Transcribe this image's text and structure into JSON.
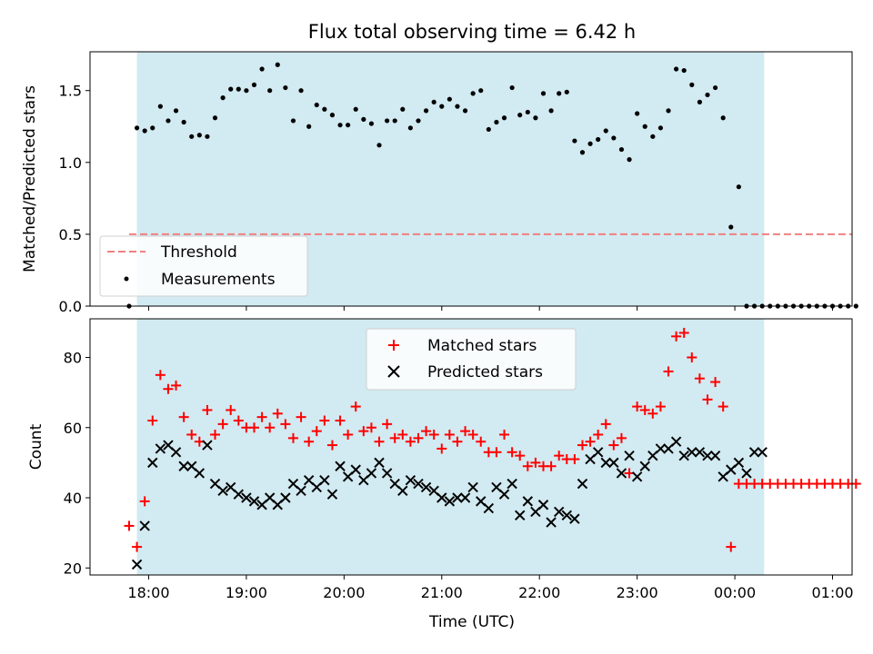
{
  "chart_data": [
    {
      "type": "scatter",
      "title": "Flux total observing time = 6.42 h",
      "xlabel": "",
      "ylabel": "Matched/Predicted stars",
      "ylim": [
        0,
        1.77
      ],
      "xlim": [
        -0.6,
        7.2
      ],
      "yticks": [
        0.0,
        0.5,
        1.0,
        1.5
      ],
      "ytick_labels": [
        "0.0",
        "0.5",
        "1.0",
        "1.5"
      ],
      "shaded_span_hours": [
        -0.12,
        6.3
      ],
      "threshold": {
        "label": "Threshold",
        "value": 0.5,
        "x_range": [
          -0.2,
          7.2
        ],
        "color": "#f08080"
      },
      "series": [
        {
          "name": "Measurements",
          "color": "#000000",
          "x": [
            -0.2,
            -0.12,
            -0.04,
            0.04,
            0.12,
            0.2,
            0.28,
            0.36,
            0.44,
            0.52,
            0.6,
            0.68,
            0.76,
            0.84,
            0.92,
            1.0,
            1.08,
            1.16,
            1.24,
            1.32,
            1.4,
            1.48,
            1.56,
            1.64,
            1.72,
            1.8,
            1.88,
            1.96,
            2.04,
            2.12,
            2.2,
            2.28,
            2.36,
            2.44,
            2.52,
            2.6,
            2.68,
            2.76,
            2.84,
            2.92,
            3.0,
            3.08,
            3.16,
            3.24,
            3.32,
            3.4,
            3.48,
            3.56,
            3.64,
            3.72,
            3.8,
            3.88,
            3.96,
            4.04,
            4.12,
            4.2,
            4.28,
            4.36,
            4.44,
            4.52,
            4.6,
            4.68,
            4.76,
            4.84,
            4.92,
            5.0,
            5.08,
            5.16,
            5.24,
            5.32,
            5.4,
            5.48,
            5.56,
            5.64,
            5.72,
            5.8,
            5.88,
            5.96,
            6.04,
            6.12,
            6.2,
            6.28,
            6.36,
            6.44,
            6.52,
            6.6,
            6.68,
            6.76,
            6.84,
            6.92,
            7.0,
            7.08,
            7.16,
            7.24
          ],
          "y": [
            0.0,
            1.24,
            1.22,
            1.24,
            1.39,
            1.29,
            1.36,
            1.28,
            1.18,
            1.19,
            1.18,
            1.31,
            1.45,
            1.51,
            1.51,
            1.5,
            1.54,
            1.65,
            1.5,
            1.68,
            1.52,
            1.29,
            1.5,
            1.25,
            1.4,
            1.37,
            1.33,
            1.26,
            1.26,
            1.37,
            1.3,
            1.27,
            1.12,
            1.29,
            1.29,
            1.37,
            1.24,
            1.29,
            1.36,
            1.42,
            1.39,
            1.44,
            1.39,
            1.36,
            1.48,
            1.5,
            1.23,
            1.28,
            1.31,
            1.52,
            1.33,
            1.35,
            1.31,
            1.48,
            1.36,
            1.48,
            1.49,
            1.15,
            1.07,
            1.13,
            1.16,
            1.22,
            1.17,
            1.09,
            1.02,
            1.34,
            1.25,
            1.18,
            1.24,
            1.36,
            1.65,
            1.64,
            1.54,
            1.42,
            1.47,
            1.52,
            1.31,
            0.55,
            0.83,
            0.0,
            0.0,
            0.0,
            0.0,
            0.0,
            0.0,
            0.0,
            0.0,
            0.0,
            0.0,
            0.0,
            0.0,
            0.0,
            0.0,
            0.0
          ]
        }
      ],
      "legend": {
        "placement": "lower-left",
        "entries": [
          "Threshold",
          "Measurements"
        ]
      }
    },
    {
      "type": "scatter",
      "title": "",
      "xlabel": "Time (UTC)",
      "ylabel": "Count",
      "ylim": [
        18,
        91
      ],
      "xlim": [
        -0.6,
        7.2
      ],
      "yticks": [
        20,
        40,
        60,
        80
      ],
      "ytick_labels": [
        "20",
        "40",
        "60",
        "80"
      ],
      "xticks_hours": [
        0,
        1,
        2,
        3,
        4,
        5,
        6,
        7
      ],
      "xtick_labels": [
        "18:00",
        "19:00",
        "20:00",
        "21:00",
        "22:00",
        "23:00",
        "00:00",
        "01:00"
      ],
      "shaded_span_hours": [
        -0.12,
        6.3
      ],
      "series": [
        {
          "name": "Matched stars",
          "marker": "plus",
          "color": "#ff0000",
          "x": [
            -0.2,
            -0.12,
            -0.04,
            0.04,
            0.12,
            0.2,
            0.28,
            0.36,
            0.44,
            0.52,
            0.6,
            0.68,
            0.76,
            0.84,
            0.92,
            1.0,
            1.08,
            1.16,
            1.24,
            1.32,
            1.4,
            1.48,
            1.56,
            1.64,
            1.72,
            1.8,
            1.88,
            1.96,
            2.04,
            2.12,
            2.2,
            2.28,
            2.36,
            2.44,
            2.52,
            2.6,
            2.68,
            2.76,
            2.84,
            2.92,
            3.0,
            3.08,
            3.16,
            3.24,
            3.32,
            3.4,
            3.48,
            3.56,
            3.64,
            3.72,
            3.8,
            3.88,
            3.96,
            4.04,
            4.12,
            4.2,
            4.28,
            4.36,
            4.44,
            4.52,
            4.6,
            4.68,
            4.76,
            4.84,
            4.92,
            5.0,
            5.08,
            5.16,
            5.24,
            5.32,
            5.4,
            5.48,
            5.56,
            5.64,
            5.72,
            5.8,
            5.88,
            5.96,
            6.04,
            6.12,
            6.2,
            6.28,
            6.36,
            6.44,
            6.52,
            6.6,
            6.68,
            6.76,
            6.84,
            6.92,
            7.0,
            7.08,
            7.16,
            7.24
          ],
          "y": [
            32,
            26,
            39,
            62,
            75,
            71,
            72,
            63,
            58,
            56,
            65,
            58,
            61,
            65,
            62,
            60,
            60,
            63,
            60,
            64,
            61,
            57,
            63,
            56,
            59,
            62,
            55,
            62,
            58,
            66,
            59,
            60,
            56,
            61,
            57,
            58,
            56,
            57,
            59,
            58,
            54,
            58,
            56,
            59,
            58,
            56,
            53,
            53,
            58,
            53,
            52,
            49,
            50,
            49,
            49,
            52,
            51,
            51,
            55,
            56,
            58,
            61,
            55,
            57,
            47,
            66,
            65,
            64,
            66,
            76,
            86,
            87,
            80,
            74,
            68,
            73,
            66,
            26,
            44,
            44,
            44,
            44,
            44,
            44,
            44,
            44,
            44,
            44,
            44,
            44,
            44,
            44,
            44,
            44
          ]
        },
        {
          "name": "Predicted stars",
          "marker": "x",
          "color": "#000000",
          "x": [
            -0.12,
            -0.04,
            0.04,
            0.12,
            0.2,
            0.28,
            0.36,
            0.44,
            0.52,
            0.6,
            0.68,
            0.76,
            0.84,
            0.92,
            1.0,
            1.08,
            1.16,
            1.24,
            1.32,
            1.4,
            1.48,
            1.56,
            1.64,
            1.72,
            1.8,
            1.88,
            1.96,
            2.04,
            2.12,
            2.2,
            2.28,
            2.36,
            2.44,
            2.52,
            2.6,
            2.68,
            2.76,
            2.84,
            2.92,
            3.0,
            3.08,
            3.16,
            3.24,
            3.32,
            3.4,
            3.48,
            3.56,
            3.64,
            3.72,
            3.8,
            3.88,
            3.96,
            4.04,
            4.12,
            4.2,
            4.28,
            4.36,
            4.44,
            4.52,
            4.6,
            4.68,
            4.76,
            4.84,
            4.92,
            5.0,
            5.08,
            5.16,
            5.24,
            5.32,
            5.4,
            5.48,
            5.56,
            5.64,
            5.72,
            5.8,
            5.88,
            5.96,
            6.04,
            6.12,
            6.2,
            6.28
          ],
          "y": [
            21,
            32,
            50,
            54,
            55,
            53,
            49,
            49,
            47,
            55,
            44,
            42,
            43,
            41,
            40,
            39,
            38,
            40,
            38,
            40,
            44,
            42,
            45,
            43,
            45,
            41,
            49,
            46,
            48,
            45,
            47,
            50,
            47,
            44,
            42,
            45,
            44,
            43,
            42,
            40,
            39,
            40,
            40,
            43,
            39,
            37,
            43,
            41,
            44,
            35,
            39,
            36,
            38,
            33,
            36,
            35,
            34,
            44,
            51,
            53,
            50,
            50,
            47,
            52,
            46,
            49,
            52,
            54,
            54,
            56,
            52,
            53,
            53,
            52,
            52,
            46,
            48,
            50,
            47,
            53,
            53
          ]
        }
      ],
      "legend": {
        "placement": "upper-center",
        "entries": [
          "Matched stars",
          "Predicted stars"
        ]
      }
    }
  ]
}
